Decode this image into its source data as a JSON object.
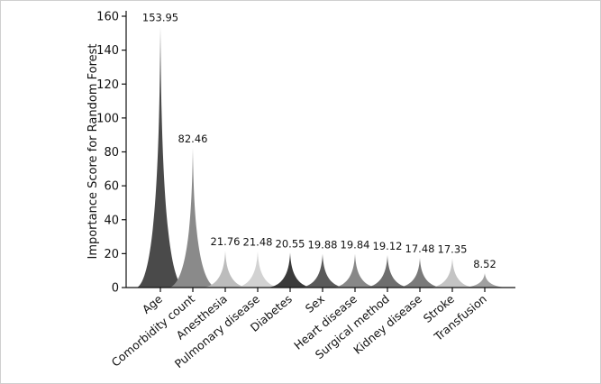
{
  "chart_data": {
    "type": "bar",
    "ylabel": "Importance Score for Random Forest",
    "xlabel": "",
    "ylim": [
      0,
      160
    ],
    "yticks": [
      0,
      20,
      40,
      60,
      80,
      100,
      120,
      140,
      160
    ],
    "categories": [
      "Age",
      "Comorbidity count",
      "Anesthesia",
      "Pulmonary disease",
      "Diabetes",
      "Sex",
      "Heart disease",
      "Surgical method",
      "Kidney disease",
      "Stroke",
      "Transfusion"
    ],
    "values": [
      153.95,
      82.46,
      21.76,
      21.48,
      20.55,
      19.88,
      19.84,
      19.12,
      17.48,
      17.35,
      8.52
    ],
    "value_labels": [
      "153.95",
      "82.46",
      "21.76",
      "21.48",
      "20.55",
      "19.88",
      "19.84",
      "19.12",
      "17.48",
      "17.35",
      "8.52"
    ],
    "colors": [
      "#4a4a4a",
      "#8a8a8a",
      "#bcbcbc",
      "#d2d2d2",
      "#3a3a3a",
      "#5a5a5a",
      "#888888",
      "#6e6e6e",
      "#7a7a7a",
      "#c4c4c4",
      "#a0a0a0"
    ]
  }
}
